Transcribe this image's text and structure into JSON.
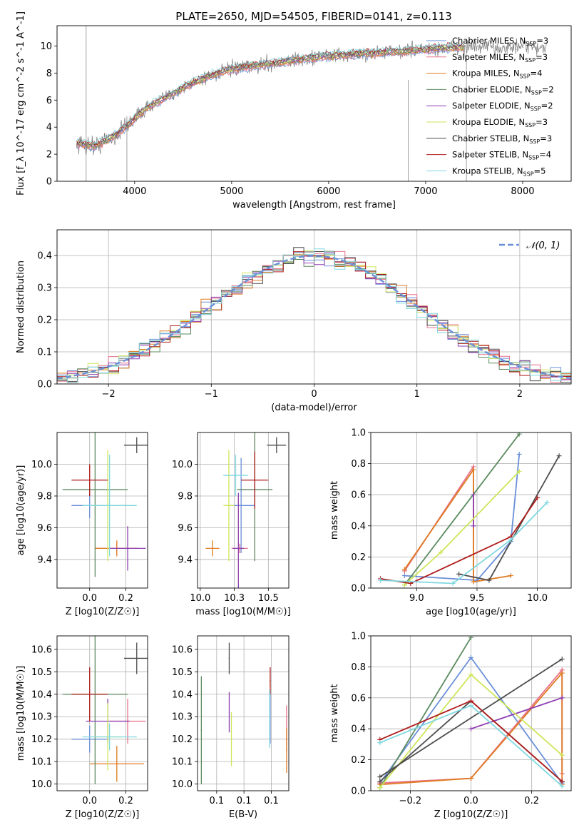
{
  "figure": {
    "title": "PLATE=2650, MJD=54505, FIBERID=0141, z=0.113"
  },
  "colors": {
    "Chabrier MILES": "#6a8fd8",
    "Salpeter MILES": "#e8718a",
    "Kroupa MILES": "#e07b22",
    "Chabrier ELODIE": "#5b8a5e",
    "Salpeter ELODIE": "#8e3fb0",
    "Kroupa ELODIE": "#cde65a",
    "Chabrier STELIB": "#4d4d4d",
    "Salpeter STELIB": "#b01c1c",
    "Kroupa STELIB": "#7fd8e0"
  },
  "chart_data": [
    {
      "type": "line",
      "panel": "spectrum",
      "xlabel": "wavelength [Angstrom, rest frame]",
      "ylabel": "Flux [f_λ 10^-17 erg cm^-2 s^-1 A^-1]",
      "xlim": [
        3200,
        8500
      ],
      "ylim": [
        0,
        11.5
      ],
      "xticks": [
        4000,
        5000,
        6000,
        7000,
        8000
      ],
      "yticks": [
        0,
        2,
        4,
        6,
        8,
        10
      ],
      "legend_position": "right",
      "legend": [
        {
          "name": "Chabrier MILES",
          "nssp": "3"
        },
        {
          "name": "Salpeter MILES",
          "nssp": "3"
        },
        {
          "name": "Kroupa MILES",
          "nssp": "4"
        },
        {
          "name": "Chabrier ELODIE",
          "nssp": "2"
        },
        {
          "name": "Salpeter ELODIE",
          "nssp": "2"
        },
        {
          "name": "Kroupa ELODIE",
          "nssp": "3"
        },
        {
          "name": "Chabrier STELIB",
          "nssp": "3"
        },
        {
          "name": "Salpeter STELIB",
          "nssp": "4"
        },
        {
          "name": "Kroupa STELIB",
          "nssp": "5"
        }
      ],
      "continuum": {
        "x": [
          3400,
          3600,
          3800,
          3950,
          4100,
          4300,
          4500,
          4700,
          4900,
          5100,
          5300,
          5500,
          5700,
          5900,
          6100,
          6300,
          6500,
          6700,
          6900,
          7100,
          7300,
          7400
        ],
        "y": [
          2.8,
          2.6,
          3.4,
          4.3,
          5.3,
          6.1,
          6.9,
          7.6,
          8.1,
          8.4,
          8.6,
          8.8,
          9.0,
          9.2,
          9.3,
          9.4,
          9.5,
          9.6,
          9.7,
          9.8,
          9.9,
          9.9
        ]
      }
    },
    {
      "type": "line",
      "panel": "residual-histogram",
      "xlabel": "(data-model)/error",
      "ylabel": "Normed distribution",
      "xlim": [
        -2.5,
        2.5
      ],
      "ylim": [
        0,
        0.48
      ],
      "xticks": [
        -2,
        -1,
        0,
        1,
        2
      ],
      "yticks": [
        0.0,
        0.1,
        0.2,
        0.3,
        0.4
      ],
      "legend_position": "top-right",
      "reference_curve": "𝒩(0, 1)",
      "grid": true
    },
    {
      "type": "scatter",
      "panel": "age-vs-Z",
      "xlabel": "Z [log10(Z/Z☉)]",
      "ylabel": "age [log10(age/yr)]",
      "xlim": [
        -0.18,
        0.32
      ],
      "ylim": [
        9.22,
        10.2
      ],
      "xticks": [
        0.0,
        0.2
      ],
      "yticks": [
        9.4,
        9.6,
        9.8,
        10.0
      ],
      "points": [
        {
          "model": "Chabrier MILES",
          "x": 0.0,
          "y": 9.74,
          "xerr": 0.1,
          "yerr": 0.08
        },
        {
          "model": "Salpeter MILES",
          "x": 0.15,
          "y": 9.47,
          "xerr": 0.12,
          "yerr": 0.04
        },
        {
          "model": "Kroupa MILES",
          "x": 0.15,
          "y": 9.47,
          "xerr": 0.12,
          "yerr": 0.05
        },
        {
          "model": "Chabrier ELODIE",
          "x": 0.03,
          "y": 9.84,
          "xerr": 0.18,
          "yerr": 0.55
        },
        {
          "model": "Salpeter ELODIE",
          "x": 0.21,
          "y": 9.47,
          "xerr": 0.1,
          "yerr": 0.14
        },
        {
          "model": "Kroupa ELODIE",
          "x": 0.1,
          "y": 9.74,
          "xerr": 0.1,
          "yerr": 0.35
        },
        {
          "model": "Chabrier STELIB",
          "x": 0.26,
          "y": 10.12,
          "xerr": 0.07,
          "yerr": 0.05
        },
        {
          "model": "Salpeter STELIB",
          "x": 0.0,
          "y": 9.9,
          "xerr": 0.1,
          "yerr": 0.1
        },
        {
          "model": "Kroupa STELIB",
          "x": 0.11,
          "y": 9.74,
          "xerr": 0.15,
          "yerr": 0.32
        }
      ]
    },
    {
      "type": "scatter",
      "panel": "age-vs-mass",
      "xlabel": "mass [log10(M/M☉)]",
      "ylabel": "",
      "xlim": [
        9.98,
        10.65
      ],
      "ylim": [
        9.22,
        10.2
      ],
      "xticks": [
        10.0,
        10.25,
        10.5
      ],
      "yticks": [
        9.4,
        9.6,
        9.8,
        10.0
      ],
      "points": [
        {
          "model": "Chabrier MILES",
          "x": 10.3,
          "y": 9.74,
          "xerr": 0.1,
          "yerr": 0.3
        },
        {
          "model": "Salpeter MILES",
          "x": 10.29,
          "y": 9.47,
          "xerr": 0.06,
          "yerr": 0.03
        },
        {
          "model": "Kroupa MILES",
          "x": 10.09,
          "y": 9.47,
          "xerr": 0.05,
          "yerr": 0.05
        },
        {
          "model": "Chabrier ELODIE",
          "x": 10.4,
          "y": 9.84,
          "xerr": 0.13,
          "yerr": 0.45
        },
        {
          "model": "Salpeter ELODIE",
          "x": 10.28,
          "y": 9.47,
          "xerr": 0.04,
          "yerr": 0.35
        },
        {
          "model": "Kroupa ELODIE",
          "x": 10.21,
          "y": 9.74,
          "xerr": 0.04,
          "yerr": 0.35
        },
        {
          "model": "Chabrier STELIB",
          "x": 10.56,
          "y": 10.12,
          "xerr": 0.07,
          "yerr": 0.05
        },
        {
          "model": "Salpeter STELIB",
          "x": 10.4,
          "y": 9.9,
          "xerr": 0.1,
          "yerr": 0.18
        },
        {
          "model": "Kroupa STELIB",
          "x": 10.26,
          "y": 9.93,
          "xerr": 0.09,
          "yerr": 0.13
        }
      ]
    },
    {
      "type": "line",
      "panel": "weight-vs-age",
      "xlabel": "age [log10(age/yr)]",
      "ylabel": "mass weight",
      "xlim": [
        8.62,
        10.28
      ],
      "ylim": [
        0,
        1.0
      ],
      "xticks": [
        9.0,
        9.5,
        10.0
      ],
      "yticks": [
        0.0,
        0.2,
        0.4,
        0.6,
        0.8,
        1.0
      ],
      "series": [
        {
          "model": "Chabrier MILES",
          "x": [
            8.9,
            9.5,
            9.78,
            9.85
          ],
          "y": [
            0.08,
            0.05,
            0.3,
            0.86
          ]
        },
        {
          "model": "Salpeter MILES",
          "x": [
            8.9,
            9.47,
            9.47
          ],
          "y": [
            0.11,
            0.78,
            0.07
          ]
        },
        {
          "model": "Kroupa MILES",
          "x": [
            8.9,
            9.47,
            9.47,
            9.78
          ],
          "y": [
            0.12,
            0.76,
            0.04,
            0.08
          ]
        },
        {
          "model": "Chabrier ELODIE",
          "x": [
            8.9,
            9.85
          ],
          "y": [
            0.02,
            0.99
          ]
        },
        {
          "model": "Salpeter ELODIE",
          "x": [
            9.47,
            9.47
          ],
          "y": [
            0.6,
            0.4
          ]
        },
        {
          "model": "Kroupa ELODIE",
          "x": [
            8.9,
            9.2,
            9.85
          ],
          "y": [
            0.02,
            0.23,
            0.75
          ]
        },
        {
          "model": "Chabrier STELIB",
          "x": [
            9.35,
            9.6,
            10.18
          ],
          "y": [
            0.09,
            0.05,
            0.85
          ]
        },
        {
          "model": "Salpeter STELIB",
          "x": [
            8.7,
            8.95,
            9.78,
            10.0
          ],
          "y": [
            0.06,
            0.03,
            0.33,
            0.58
          ]
        },
        {
          "model": "Kroupa STELIB",
          "x": [
            8.7,
            9.3,
            9.78,
            10.08
          ],
          "y": [
            0.05,
            0.03,
            0.31,
            0.55
          ]
        }
      ]
    },
    {
      "type": "scatter",
      "panel": "mass-vs-Z",
      "xlabel": "Z [log10(Z/Z☉)]",
      "ylabel": "mass [log10(M/M☉)]",
      "xlim": [
        -0.18,
        0.32
      ],
      "ylim": [
        9.97,
        10.66
      ],
      "xticks": [
        0.0,
        0.2
      ],
      "yticks": [
        10.0,
        10.1,
        10.2,
        10.3,
        10.4,
        10.5,
        10.6
      ],
      "points": [
        {
          "model": "Chabrier MILES",
          "x": 0.0,
          "y": 10.2,
          "xerr": 0.1,
          "yerr": 0.06
        },
        {
          "model": "Salpeter MILES",
          "x": 0.21,
          "y": 10.28,
          "xerr": 0.1,
          "yerr": 0.1
        },
        {
          "model": "Kroupa MILES",
          "x": 0.15,
          "y": 10.09,
          "xerr": 0.15,
          "yerr": 0.08
        },
        {
          "model": "Chabrier ELODIE",
          "x": 0.03,
          "y": 10.4,
          "xerr": 0.18,
          "yerr": 0.4
        },
        {
          "model": "Salpeter ELODIE",
          "x": 0.1,
          "y": 10.28,
          "xerr": 0.12,
          "yerr": 0.1
        },
        {
          "model": "Kroupa ELODIE",
          "x": 0.1,
          "y": 10.21,
          "xerr": 0.08,
          "yerr": 0.15
        },
        {
          "model": "Chabrier STELIB",
          "x": 0.26,
          "y": 10.56,
          "xerr": 0.07,
          "yerr": 0.07
        },
        {
          "model": "Salpeter STELIB",
          "x": 0.0,
          "y": 10.4,
          "xerr": 0.1,
          "yerr": 0.12
        },
        {
          "model": "Kroupa STELIB",
          "x": 0.11,
          "y": 10.21,
          "xerr": 0.15,
          "yerr": 0.06
        }
      ]
    },
    {
      "type": "scatter",
      "panel": "mass-vs-EBV",
      "xlabel": "E(B-V)",
      "ylabel": "",
      "xlim": [
        0.015,
        0.182
      ],
      "ylim": [
        9.97,
        10.66
      ],
      "xticks": [
        0.05,
        0.1,
        0.15
      ],
      "yticks": [
        10.0,
        10.1,
        10.2,
        10.3,
        10.4,
        10.5,
        10.6
      ],
      "points": [
        {
          "model": "Chabrier MILES",
          "x": 0.148,
          "y": 10.3,
          "xerr": 0,
          "yerr": 0.12
        },
        {
          "model": "Salpeter MILES",
          "x": 0.178,
          "y": 10.25,
          "xerr": 0,
          "yerr": 0.1
        },
        {
          "model": "Kroupa MILES",
          "x": 0.178,
          "y": 10.15,
          "xerr": 0,
          "yerr": 0.1
        },
        {
          "model": "Chabrier ELODIE",
          "x": 0.022,
          "y": 10.24,
          "xerr": 0,
          "yerr": 0.24
        },
        {
          "model": "Salpeter ELODIE",
          "x": 0.073,
          "y": 10.32,
          "xerr": 0,
          "yerr": 0.09
        },
        {
          "model": "Kroupa ELODIE",
          "x": 0.077,
          "y": 10.2,
          "xerr": 0,
          "yerr": 0.12
        },
        {
          "model": "Chabrier STELIB",
          "x": 0.073,
          "y": 10.56,
          "xerr": 0,
          "yerr": 0.07
        },
        {
          "model": "Salpeter STELIB",
          "x": 0.148,
          "y": 10.46,
          "xerr": 0,
          "yerr": 0.06
        },
        {
          "model": "Kroupa STELIB",
          "x": 0.147,
          "y": 10.29,
          "xerr": 0,
          "yerr": 0.13
        }
      ]
    },
    {
      "type": "line",
      "panel": "weight-vs-Z",
      "xlabel": "Z [log10(Z/Z☉)]",
      "ylabel": "mass weight",
      "xlim": [
        -0.33,
        0.33
      ],
      "ylim": [
        0,
        1.0
      ],
      "xticks": [
        -0.2,
        0.0,
        0.2
      ],
      "yticks": [
        0.0,
        0.2,
        0.4,
        0.6,
        0.8,
        1.0
      ],
      "series": [
        {
          "model": "Chabrier MILES",
          "x": [
            -0.3,
            0.0,
            0.3
          ],
          "y": [
            0.05,
            0.86,
            0.05
          ]
        },
        {
          "model": "Salpeter MILES",
          "x": [
            -0.3,
            0.0,
            0.3,
            0.3
          ],
          "y": [
            0.05,
            0.08,
            0.78,
            0.11
          ]
        },
        {
          "model": "Kroupa MILES",
          "x": [
            -0.3,
            0.0,
            0.3,
            0.3
          ],
          "y": [
            0.04,
            0.08,
            0.76,
            0.04
          ]
        },
        {
          "model": "Chabrier ELODIE",
          "x": [
            -0.3,
            0.0
          ],
          "y": [
            0.02,
            0.99
          ]
        },
        {
          "model": "Salpeter ELODIE",
          "x": [
            0.0,
            0.3
          ],
          "y": [
            0.4,
            0.6
          ]
        },
        {
          "model": "Kroupa ELODIE",
          "x": [
            -0.3,
            0.0,
            0.3
          ],
          "y": [
            0.02,
            0.75,
            0.23
          ]
        },
        {
          "model": "Chabrier STELIB",
          "x": [
            -0.3,
            0.3
          ],
          "y": [
            0.09,
            0.85
          ]
        },
        {
          "model": "Chabrier STELIB",
          "x": [
            -0.3,
            0.0,
            0.3
          ],
          "y": [
            0.06,
            0.58,
            0.06
          ]
        },
        {
          "model": "Salpeter STELIB",
          "x": [
            -0.3,
            0.0,
            0.3
          ],
          "y": [
            0.33,
            0.58,
            0.06
          ]
        },
        {
          "model": "Kroupa STELIB",
          "x": [
            -0.3,
            0.0,
            0.3
          ],
          "y": [
            0.31,
            0.55,
            0.03
          ]
        }
      ]
    }
  ]
}
